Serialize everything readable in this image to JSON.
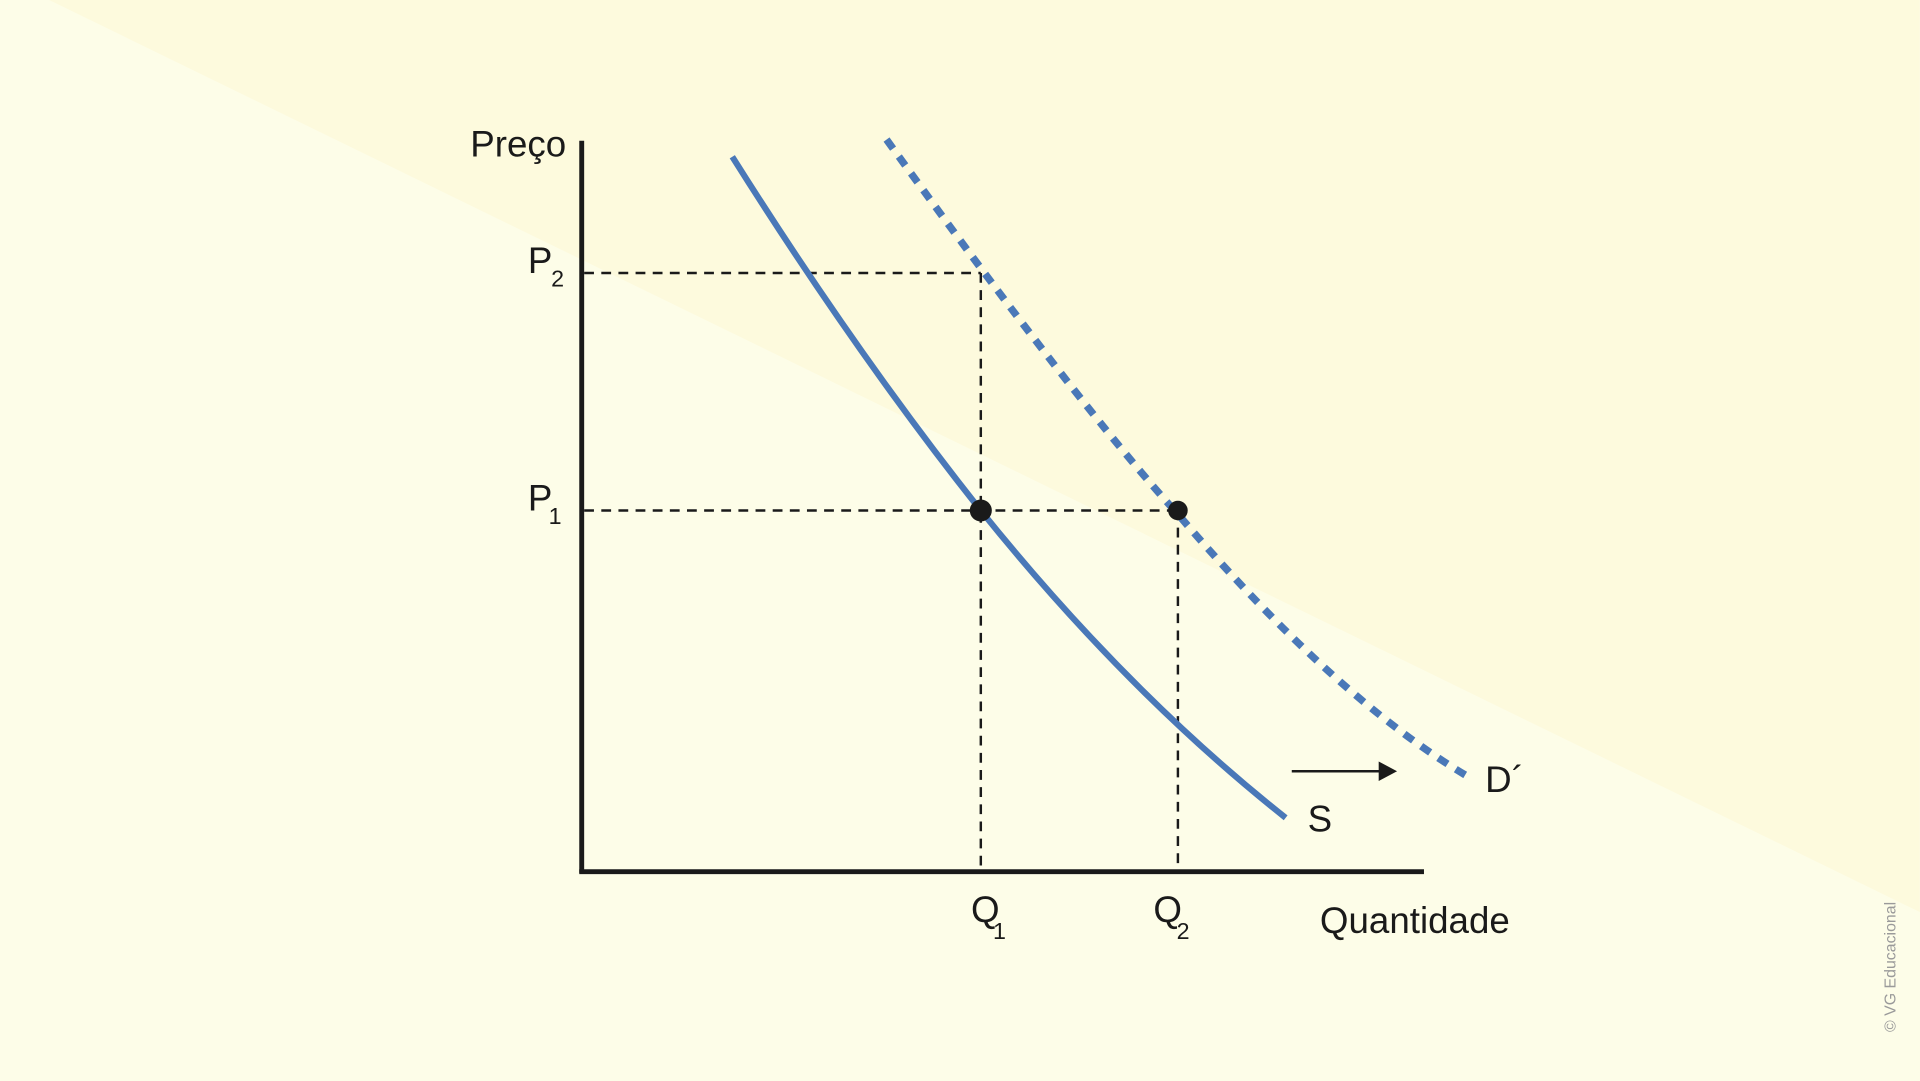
{
  "axes": {
    "y_label": "Preço",
    "x_label": "Quantidade"
  },
  "price_levels": [
    {
      "main": "P",
      "sub": "2"
    },
    {
      "main": "P",
      "sub": "1"
    }
  ],
  "quantity_levels": [
    {
      "main": "Q",
      "sub": "1"
    },
    {
      "main": "Q",
      "sub": "2"
    }
  ],
  "curves": [
    {
      "label": "S"
    },
    {
      "label": "D´"
    }
  ],
  "credit": "© VG Educacional"
}
